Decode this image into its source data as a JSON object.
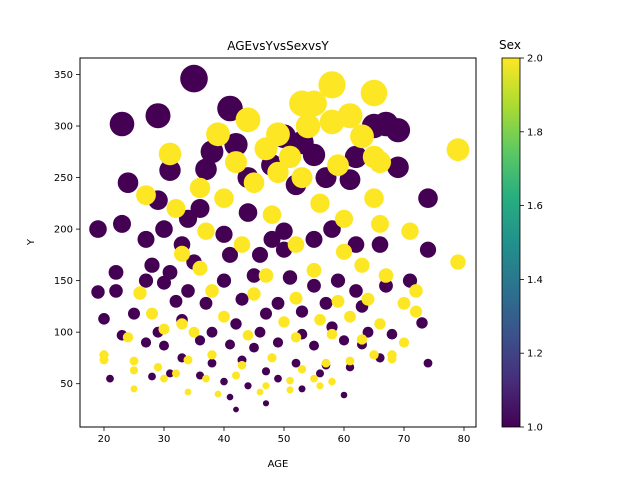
{
  "chart_data": {
    "type": "scatter",
    "title": "AGEvsYvsSexvsY",
    "xlabel": "AGE",
    "ylabel": "Y",
    "xlim": [
      16,
      82
    ],
    "ylim": [
      8,
      366
    ],
    "xticks": [
      20,
      30,
      40,
      50,
      60,
      70,
      80
    ],
    "yticks": [
      50,
      100,
      150,
      200,
      250,
      300,
      350
    ],
    "colorbar": {
      "title": "Sex",
      "range": [
        1.0,
        2.0
      ],
      "ticks": [
        "1.0",
        "1.2",
        "1.4",
        "1.6",
        "1.8",
        "2.0"
      ],
      "colormap": "viridis",
      "low_color": "#440154",
      "high_color": "#fde725"
    },
    "marker_size_encodes": "Y",
    "grid": false,
    "series": [
      {
        "sex": 1,
        "color": "#440154",
        "points": [
          [
            35,
            346
          ],
          [
            29,
            310
          ],
          [
            23,
            302
          ],
          [
            41,
            317
          ],
          [
            69,
            296
          ],
          [
            67,
            302
          ],
          [
            50,
            290
          ],
          [
            53,
            284
          ],
          [
            42,
            282
          ],
          [
            38,
            275
          ],
          [
            62,
            270
          ],
          [
            55,
            272
          ],
          [
            24,
            245
          ],
          [
            31,
            257
          ],
          [
            37,
            258
          ],
          [
            48,
            262
          ],
          [
            57,
            250
          ],
          [
            61,
            248
          ],
          [
            69,
            260
          ],
          [
            52,
            243
          ],
          [
            74,
            230
          ],
          [
            29,
            228
          ],
          [
            36,
            220
          ],
          [
            44,
            216
          ],
          [
            30,
            200
          ],
          [
            34,
            210
          ],
          [
            23,
            205
          ],
          [
            19,
            200
          ],
          [
            27,
            190
          ],
          [
            33,
            185
          ],
          [
            40,
            195
          ],
          [
            48,
            190
          ],
          [
            50,
            198
          ],
          [
            55,
            190
          ],
          [
            58,
            200
          ],
          [
            46,
            175
          ],
          [
            41,
            175
          ],
          [
            50,
            180
          ],
          [
            62,
            185
          ],
          [
            66,
            185
          ],
          [
            74,
            180
          ],
          [
            28,
            165
          ],
          [
            31,
            158
          ],
          [
            35,
            168
          ],
          [
            22,
            158
          ],
          [
            19,
            139
          ],
          [
            22,
            140
          ],
          [
            27,
            150
          ],
          [
            30,
            148
          ],
          [
            34,
            140
          ],
          [
            40,
            150
          ],
          [
            45,
            155
          ],
          [
            51,
            153
          ],
          [
            55,
            145
          ],
          [
            62,
            140
          ],
          [
            67,
            145
          ],
          [
            71,
            150
          ],
          [
            32,
            130
          ],
          [
            37,
            128
          ],
          [
            43,
            132
          ],
          [
            47,
            118
          ],
          [
            53,
            120
          ],
          [
            57,
            128
          ],
          [
            63,
            125
          ],
          [
            20,
            113
          ],
          [
            25,
            118
          ],
          [
            29,
            100
          ],
          [
            33,
            112
          ],
          [
            38,
            100
          ],
          [
            42,
            108
          ],
          [
            46,
            100
          ],
          [
            53,
            98
          ],
          [
            58,
            105
          ],
          [
            64,
            100
          ],
          [
            68,
            98
          ],
          [
            73,
            109
          ],
          [
            23,
            97
          ],
          [
            27,
            90
          ],
          [
            30,
            87
          ],
          [
            36,
            92
          ],
          [
            41,
            88
          ],
          [
            45,
            85
          ],
          [
            49,
            90
          ],
          [
            55,
            87
          ],
          [
            60,
            92
          ],
          [
            33,
            75
          ],
          [
            38,
            70
          ],
          [
            43,
            73
          ],
          [
            47,
            62
          ],
          [
            52,
            70
          ],
          [
            57,
            68
          ],
          [
            61,
            66
          ],
          [
            66,
            75
          ],
          [
            74,
            70
          ],
          [
            21,
            55
          ],
          [
            28,
            57
          ],
          [
            31,
            60
          ],
          [
            36,
            58
          ],
          [
            40,
            52
          ],
          [
            44,
            48
          ],
          [
            49,
            55
          ],
          [
            53,
            45
          ],
          [
            60,
            39
          ],
          [
            41,
            37
          ],
          [
            47,
            31
          ],
          [
            42,
            25
          ],
          [
            56,
            60
          ],
          [
            63,
            88
          ],
          [
            49,
            128
          ],
          [
            59,
            150
          ],
          [
            65,
            300
          ],
          [
            44,
            250
          ]
        ]
      },
      {
        "sex": 2,
        "color": "#fde725",
        "points": [
          [
            58,
            340
          ],
          [
            65,
            332
          ],
          [
            55,
            322
          ],
          [
            53,
            322
          ],
          [
            44,
            306
          ],
          [
            61,
            310
          ],
          [
            58,
            304
          ],
          [
            54,
            300
          ],
          [
            39,
            292
          ],
          [
            49,
            292
          ],
          [
            63,
            290
          ],
          [
            65,
            270
          ],
          [
            31,
            273
          ],
          [
            47,
            278
          ],
          [
            51,
            270
          ],
          [
            42,
            265
          ],
          [
            66,
            265
          ],
          [
            59,
            262
          ],
          [
            49,
            255
          ],
          [
            53,
            250
          ],
          [
            45,
            245
          ],
          [
            36,
            240
          ],
          [
            27,
            233
          ],
          [
            40,
            230
          ],
          [
            65,
            230
          ],
          [
            56,
            225
          ],
          [
            32,
            220
          ],
          [
            48,
            214
          ],
          [
            60,
            210
          ],
          [
            66,
            205
          ],
          [
            71,
            198
          ],
          [
            37,
            198
          ],
          [
            43,
            185
          ],
          [
            52,
            185
          ],
          [
            60,
            178
          ],
          [
            33,
            176
          ],
          [
            36,
            162
          ],
          [
            47,
            155
          ],
          [
            55,
            160
          ],
          [
            63,
            165
          ],
          [
            67,
            155
          ],
          [
            72,
            140
          ],
          [
            26,
            138
          ],
          [
            38,
            140
          ],
          [
            45,
            137
          ],
          [
            52,
            133
          ],
          [
            59,
            130
          ],
          [
            64,
            132
          ],
          [
            70,
            128
          ],
          [
            28,
            118
          ],
          [
            33,
            108
          ],
          [
            40,
            115
          ],
          [
            50,
            110
          ],
          [
            56,
            112
          ],
          [
            61,
            115
          ],
          [
            66,
            108
          ],
          [
            24,
            95
          ],
          [
            30,
            103
          ],
          [
            35,
            100
          ],
          [
            44,
            97
          ],
          [
            52,
            95
          ],
          [
            58,
            98
          ],
          [
            63,
            93
          ],
          [
            70,
            90
          ],
          [
            20,
            78
          ],
          [
            25,
            72
          ],
          [
            29,
            66
          ],
          [
            34,
            73
          ],
          [
            38,
            78
          ],
          [
            43,
            68
          ],
          [
            48,
            75
          ],
          [
            53,
            64
          ],
          [
            57,
            70
          ],
          [
            61,
            72
          ],
          [
            65,
            78
          ],
          [
            68,
            78
          ],
          [
            20,
            73
          ],
          [
            25,
            63
          ],
          [
            32,
            60
          ],
          [
            37,
            55
          ],
          [
            42,
            58
          ],
          [
            47,
            48
          ],
          [
            51,
            53
          ],
          [
            55,
            55
          ],
          [
            58,
            52
          ],
          [
            25,
            45
          ],
          [
            30,
            55
          ],
          [
            34,
            42
          ],
          [
            39,
            40
          ],
          [
            46,
            42
          ],
          [
            51,
            44
          ],
          [
            56,
            48
          ],
          [
            79,
            277
          ],
          [
            79,
            168
          ],
          [
            68,
            74
          ],
          [
            72,
            120
          ]
        ]
      }
    ]
  }
}
